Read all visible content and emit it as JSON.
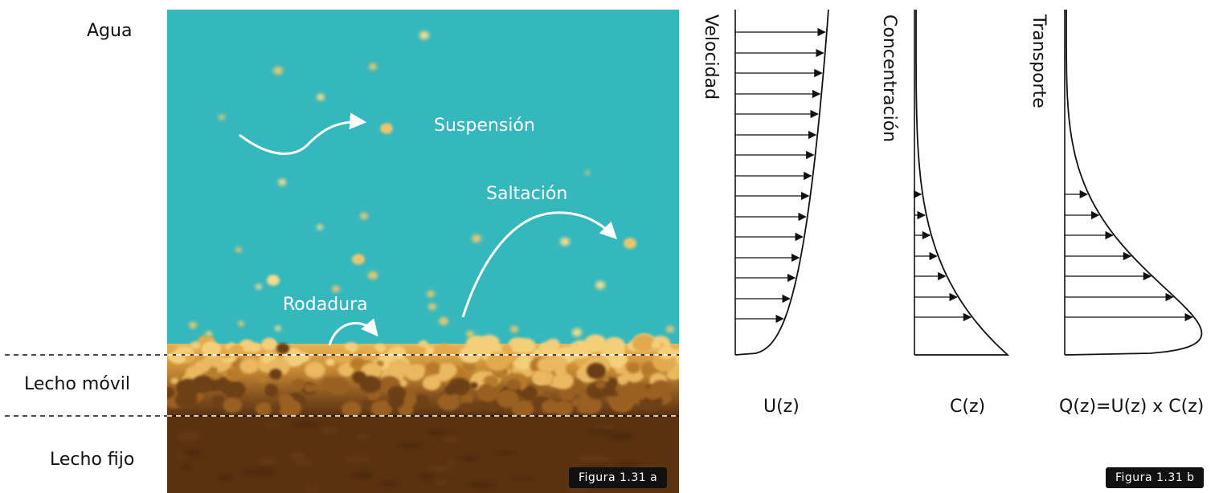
{
  "left_figure": {
    "layers": [
      {
        "key": "water",
        "label": "Agua",
        "color": "#34b7bd"
      },
      {
        "key": "moving_bed",
        "label": "Lecho móvil",
        "color": "#c4892e"
      },
      {
        "key": "fixed_bed",
        "label": "Lecho fijo",
        "color": "#5a3210"
      }
    ],
    "modes": {
      "suspension": "Suspensión",
      "saltation": "Saltación",
      "rolling": "Rodadura"
    },
    "tag": "Figura 1.31 a"
  },
  "right_figure": {
    "profiles": [
      {
        "key": "velocity",
        "title": "Velocidad",
        "formula": "U(z)"
      },
      {
        "key": "concentration",
        "title": "Concentración",
        "formula": "C(z)"
      },
      {
        "key": "transport",
        "title": "Transporte",
        "formula": "Q(z)=U(z) x C(z)"
      }
    ],
    "tag": "Figura 1.31 b"
  },
  "colors": {
    "water": "#34b7bd",
    "grain_light": "#f3d27a",
    "grain_mid": "#d9a440",
    "bed_dark": "#5a3210",
    "ink": "#111111"
  }
}
